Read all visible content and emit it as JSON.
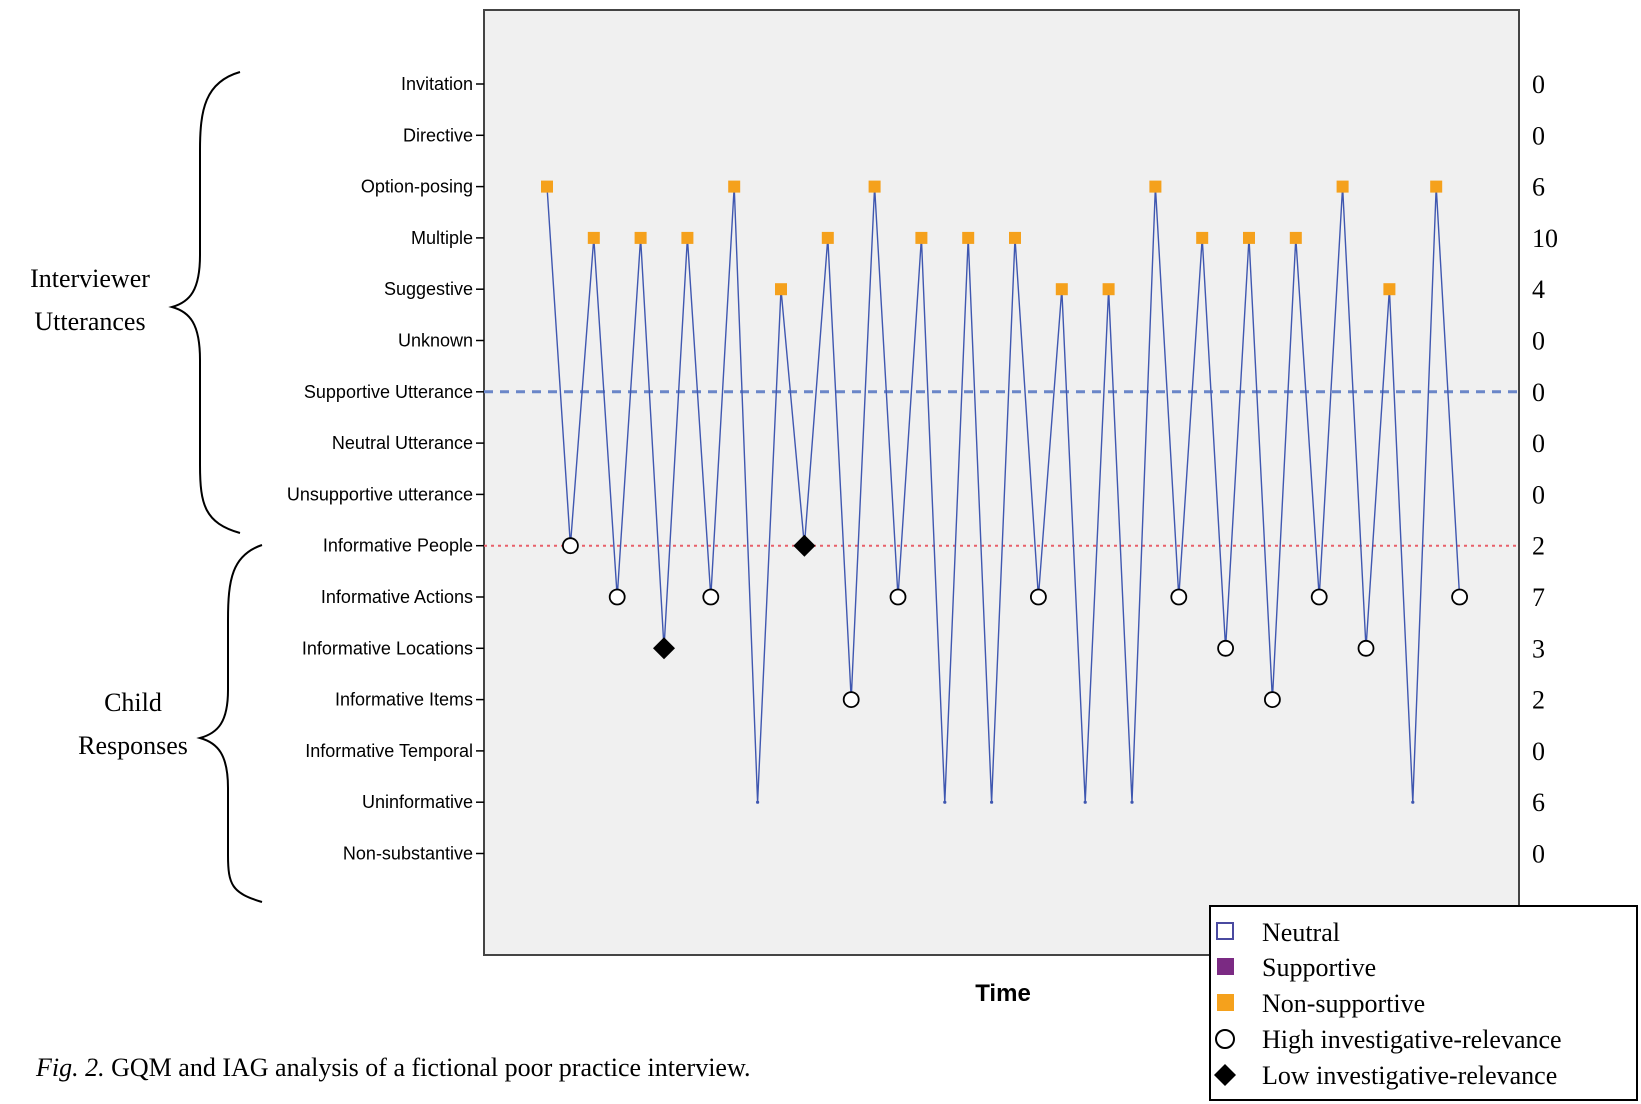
{
  "chart_data": {
    "type": "line",
    "xlabel": "Time",
    "categories": [
      "Invitation",
      "Directive",
      "Option-posing",
      "Multiple",
      "Suggestive",
      "Unknown",
      "Supportive Utterance",
      "Neutral Utterance",
      "Unsupportive utterance",
      "Informative People",
      "Informative Actions",
      "Informative Locations",
      "Informative Items",
      "Informative Temporal",
      "Uninformative",
      "Non-substantive"
    ],
    "counts": [
      "0",
      "0",
      "6",
      "10",
      "4",
      "0",
      "0",
      "0",
      "0",
      "2",
      "7",
      "3",
      "2",
      "0",
      "6",
      "0"
    ],
    "groups": [
      {
        "label_lines": [
          "Interviewer",
          "Utterances"
        ]
      },
      {
        "label_lines": [
          "Child",
          "Responses"
        ]
      }
    ],
    "reference_lines": [
      {
        "category": "Supportive Utterance",
        "color": "#6a86c8",
        "style": "dashed"
      },
      {
        "category": "Informative People",
        "color": "#e8606a",
        "style": "dotted"
      }
    ],
    "line_color": "#3f57b0",
    "sequence": [
      {
        "t": 1,
        "category": "Option-posing",
        "marker": "non-supportive"
      },
      {
        "t": 2,
        "category": "Informative People",
        "marker": "high"
      },
      {
        "t": 3,
        "category": "Multiple",
        "marker": "non-supportive"
      },
      {
        "t": 4,
        "category": "Informative Actions",
        "marker": "high"
      },
      {
        "t": 5,
        "category": "Multiple",
        "marker": "non-supportive"
      },
      {
        "t": 6,
        "category": "Informative Locations",
        "marker": "low"
      },
      {
        "t": 7,
        "category": "Multiple",
        "marker": "non-supportive"
      },
      {
        "t": 8,
        "category": "Informative Actions",
        "marker": "high"
      },
      {
        "t": 9,
        "category": "Option-posing",
        "marker": "non-supportive"
      },
      {
        "t": 10,
        "category": "Uninformative",
        "marker": "none"
      },
      {
        "t": 11,
        "category": "Suggestive",
        "marker": "non-supportive"
      },
      {
        "t": 12,
        "category": "Informative People",
        "marker": "low"
      },
      {
        "t": 13,
        "category": "Multiple",
        "marker": "non-supportive"
      },
      {
        "t": 14,
        "category": "Informative Items",
        "marker": "high"
      },
      {
        "t": 15,
        "category": "Option-posing",
        "marker": "non-supportive"
      },
      {
        "t": 16,
        "category": "Informative Actions",
        "marker": "high"
      },
      {
        "t": 17,
        "category": "Multiple",
        "marker": "non-supportive"
      },
      {
        "t": 18,
        "category": "Uninformative",
        "marker": "none"
      },
      {
        "t": 19,
        "category": "Multiple",
        "marker": "non-supportive"
      },
      {
        "t": 20,
        "category": "Uninformative",
        "marker": "none"
      },
      {
        "t": 21,
        "category": "Multiple",
        "marker": "non-supportive"
      },
      {
        "t": 22,
        "category": "Informative Actions",
        "marker": "high"
      },
      {
        "t": 23,
        "category": "Suggestive",
        "marker": "non-supportive"
      },
      {
        "t": 24,
        "category": "Uninformative",
        "marker": "none"
      },
      {
        "t": 25,
        "category": "Suggestive",
        "marker": "non-supportive"
      },
      {
        "t": 26,
        "category": "Uninformative",
        "marker": "none"
      },
      {
        "t": 27,
        "category": "Option-posing",
        "marker": "non-supportive"
      },
      {
        "t": 28,
        "category": "Informative Actions",
        "marker": "high"
      },
      {
        "t": 29,
        "category": "Multiple",
        "marker": "non-supportive"
      },
      {
        "t": 30,
        "category": "Informative Locations",
        "marker": "high"
      },
      {
        "t": 31,
        "category": "Multiple",
        "marker": "non-supportive"
      },
      {
        "t": 32,
        "category": "Informative Items",
        "marker": "high"
      },
      {
        "t": 33,
        "category": "Multiple",
        "marker": "non-supportive"
      },
      {
        "t": 34,
        "category": "Informative Actions",
        "marker": "high"
      },
      {
        "t": 35,
        "category": "Option-posing",
        "marker": "non-supportive"
      },
      {
        "t": 36,
        "category": "Informative Locations",
        "marker": "high"
      },
      {
        "t": 37,
        "category": "Suggestive",
        "marker": "non-supportive"
      },
      {
        "t": 38,
        "category": "Uninformative",
        "marker": "none"
      },
      {
        "t": 39,
        "category": "Option-posing",
        "marker": "non-supportive"
      },
      {
        "t": 40,
        "category": "Informative Actions",
        "marker": "high"
      }
    ],
    "legend": [
      {
        "key": "neutral",
        "label": "Neutral",
        "symbol": "open-square",
        "color": "#4a4aa0"
      },
      {
        "key": "supportive",
        "label": "Supportive",
        "symbol": "filled-square",
        "color": "#7b2a83"
      },
      {
        "key": "non-supportive",
        "label": "Non-supportive",
        "symbol": "filled-square",
        "color": "#f5a11c"
      },
      {
        "key": "high",
        "label": "High investigative-relevance",
        "symbol": "open-circle",
        "color": "#000000"
      },
      {
        "key": "low",
        "label": "Low investigative-relevance",
        "symbol": "filled-diamond",
        "color": "#000000"
      }
    ],
    "legend_position": "bottom-right",
    "grid": false
  },
  "caption": {
    "prefix": "Fig. 2.",
    "text": "  GQM and IAG analysis of a fictional poor practice interview."
  }
}
